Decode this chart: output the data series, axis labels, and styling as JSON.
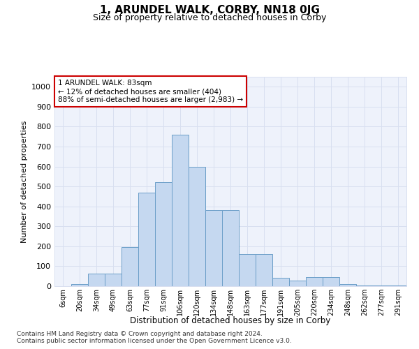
{
  "title": "1, ARUNDEL WALK, CORBY, NN18 0JG",
  "subtitle": "Size of property relative to detached houses in Corby",
  "xlabel": "Distribution of detached houses by size in Corby",
  "ylabel": "Number of detached properties",
  "footer_line1": "Contains HM Land Registry data © Crown copyright and database right 2024.",
  "footer_line2": "Contains public sector information licensed under the Open Government Licence v3.0.",
  "categories": [
    "6sqm",
    "20sqm",
    "34sqm",
    "49sqm",
    "63sqm",
    "77sqm",
    "91sqm",
    "106sqm",
    "120sqm",
    "134sqm",
    "148sqm",
    "163sqm",
    "177sqm",
    "191sqm",
    "205sqm",
    "220sqm",
    "234sqm",
    "248sqm",
    "262sqm",
    "277sqm",
    "291sqm"
  ],
  "values": [
    0,
    12,
    62,
    62,
    197,
    470,
    520,
    760,
    597,
    383,
    383,
    160,
    160,
    42,
    27,
    44,
    44,
    10,
    5,
    5,
    5
  ],
  "bar_color": "#c5d8f0",
  "bar_edge_color": "#6b9ec8",
  "bg_color": "#eef2fb",
  "grid_color": "#d8dff0",
  "annotation_text": "1 ARUNDEL WALK: 83sqm\n← 12% of detached houses are smaller (404)\n88% of semi-detached houses are larger (2,983) →",
  "annotation_box_color": "#cc0000",
  "ylim": [
    0,
    1050
  ],
  "yticks": [
    0,
    100,
    200,
    300,
    400,
    500,
    600,
    700,
    800,
    900,
    1000
  ]
}
